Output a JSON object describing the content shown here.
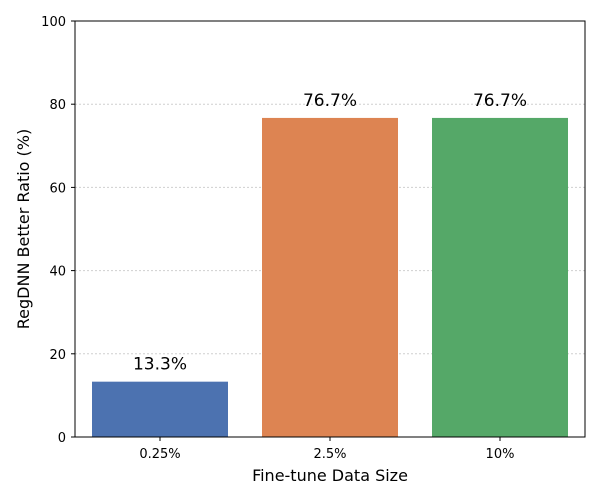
{
  "chart_data": {
    "type": "bar",
    "categories": [
      "0.25%",
      "2.5%",
      "10%"
    ],
    "values": [
      13.3,
      76.7,
      76.7
    ],
    "data_labels": [
      "13.3%",
      "76.7%",
      "76.7%"
    ],
    "colors": [
      "#4c72b0",
      "#dd8452",
      "#55a868"
    ],
    "xlabel": "Fine-tune Data Size",
    "ylabel": "RegDNN Better Ratio (%)",
    "ylim": [
      0,
      100
    ],
    "yticks": [
      0,
      20,
      40,
      60,
      80,
      100
    ],
    "ytick_labels": [
      "0",
      "20",
      "40",
      "60",
      "80",
      "100"
    ],
    "grid": "y-axis dotted"
  }
}
